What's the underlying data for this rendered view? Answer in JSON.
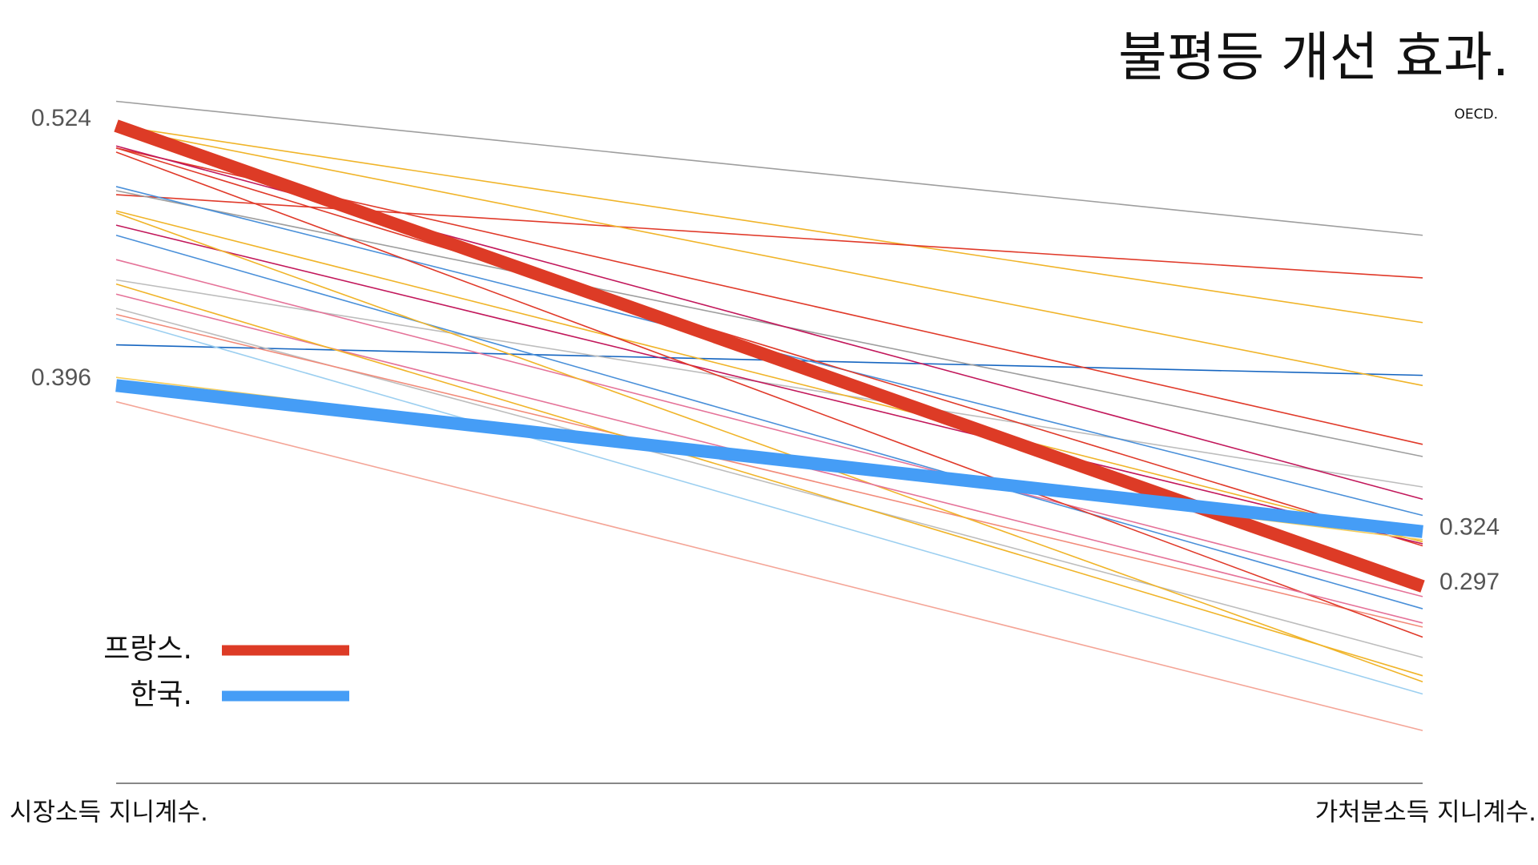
{
  "chart_data": {
    "type": "slope",
    "title": "불평등 개선 효과.",
    "subtitle": "OECD.",
    "categories": [
      "시장소득 지니계수.",
      "가처분소득 지니계수."
    ],
    "ylim": [
      0.2,
      0.58
    ],
    "series": [
      {
        "color": "#9e9e9e",
        "values": [
          0.536,
          0.47
        ]
      },
      {
        "color": "#f0b429",
        "values": [
          0.524,
          0.427
        ]
      },
      {
        "color": "#e03a2a",
        "values": [
          0.49,
          0.449
        ]
      },
      {
        "color": "#1565c0",
        "values": [
          0.416,
          0.401
        ]
      },
      {
        "color": "#f0b429",
        "values": [
          0.523,
          0.396
        ]
      },
      {
        "color": "#e03a2a",
        "values": [
          0.513,
          0.367
        ]
      },
      {
        "color": "#9e9e9e",
        "values": [
          0.492,
          0.361
        ]
      },
      {
        "color": "#bdbdbd",
        "values": [
          0.448,
          0.346
        ]
      },
      {
        "color": "#c2185b",
        "values": [
          0.514,
          0.34
        ]
      },
      {
        "color": "#4a90d9",
        "values": [
          0.494,
          0.332
        ]
      },
      {
        "color": "#e03a2a",
        "values": [
          0.513,
          0.317
        ]
      },
      {
        "color": "#c2185b",
        "values": [
          0.475,
          0.318
        ]
      },
      {
        "color": "#4a90d9",
        "values": [
          0.47,
          0.286
        ]
      },
      {
        "color": "#f0b429",
        "values": [
          0.482,
          0.319
        ]
      },
      {
        "color": "#e57399",
        "values": [
          0.458,
          0.292
        ]
      },
      {
        "color": "#bdbdbd",
        "values": [
          0.434,
          0.262
        ]
      },
      {
        "color": "#f28b7a",
        "values": [
          0.431,
          0.277
        ]
      },
      {
        "color": "#f5cd5b",
        "values": [
          0.4,
          0.32
        ]
      },
      {
        "color": "#9ccff0",
        "values": [
          0.429,
          0.244
        ]
      },
      {
        "color": "#f0b429",
        "values": [
          0.481,
          0.25
        ]
      },
      {
        "color": "#e03a2a",
        "values": [
          0.511,
          0.272
        ]
      },
      {
        "color": "#f4a597",
        "values": [
          0.388,
          0.226
        ]
      },
      {
        "color": "#e57399",
        "values": [
          0.441,
          0.279
        ]
      },
      {
        "color": "#f0b429",
        "values": [
          0.446,
          0.253
        ]
      },
      {
        "name": "프랑스.",
        "color": "#dd3b26",
        "width": 16,
        "show_values": true,
        "values": [
          0.524,
          0.297
        ]
      },
      {
        "name": "한국.",
        "color": "#459df6",
        "width": 16,
        "show_values": true,
        "values": [
          0.396,
          0.324
        ]
      }
    ]
  }
}
